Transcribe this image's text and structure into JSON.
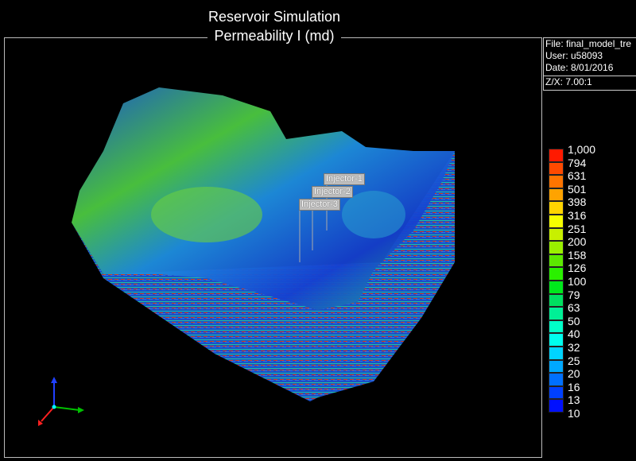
{
  "title": "Reservoir Simulation",
  "subtitle": "Permeability I (md)",
  "info": {
    "file": "File: final_model_tre",
    "user": "User:  u58093",
    "date": "Date: 8/01/2016",
    "zx": "Z/X: 7.00:1"
  },
  "wells": [
    "Injector-1",
    "Injector-2",
    "Injector-3"
  ],
  "legend": {
    "labels": [
      "1,000",
      "794",
      "631",
      "501",
      "398",
      "316",
      "251",
      "200",
      "158",
      "126",
      "100",
      "79",
      "63",
      "50",
      "40",
      "32",
      "25",
      "20",
      "16",
      "13",
      "10"
    ],
    "colors": [
      "#ff1a00",
      "#ff4a00",
      "#ff7400",
      "#ffa300",
      "#ffd400",
      "#f5ff00",
      "#c8f000",
      "#9af000",
      "#5ce800",
      "#2af000",
      "#00e81c",
      "#00e060",
      "#00f096",
      "#00ffc8",
      "#00ffee",
      "#00d4ff",
      "#00a8ff",
      "#0070ff",
      "#0040ff",
      "#0010ff"
    ]
  },
  "axes_triad": {
    "x_color": "#00c000",
    "y_color": "#ff2020",
    "z_color": "#2040ff"
  }
}
